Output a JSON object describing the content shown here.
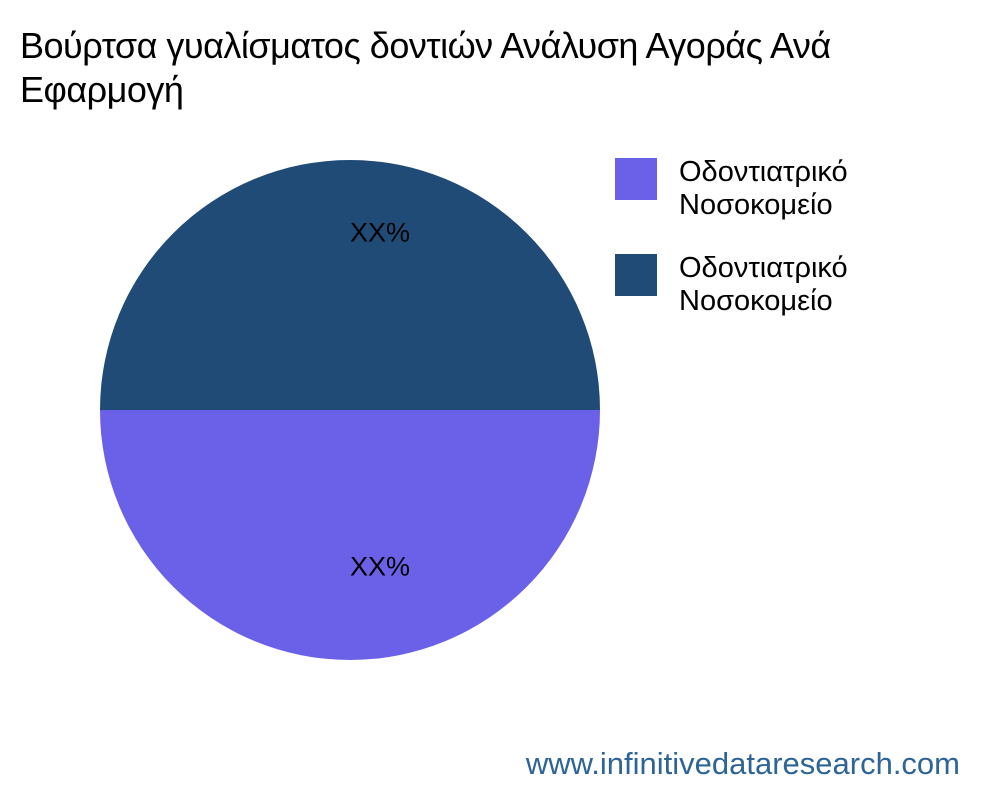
{
  "title": {
    "lines": [
      "Βούρτσα γυαλίσματος δοντιών Ανάλυση Αγοράς Ανά",
      "Εφαρμογή"
    ]
  },
  "chart_data": {
    "type": "pie",
    "title": "Βούρτσα γυαλίσματος δοντιών Ανάλυση Αγοράς Ανά Εφαρμογή",
    "slices": [
      {
        "label": "Οδοντιατρικό Νοσοκομείο",
        "value": 50,
        "display_value": "XX%",
        "color": "#6B61E8",
        "position": "bottom"
      },
      {
        "label": "Οδοντιατρικό Νοσοκομείο",
        "value": 50,
        "display_value": "XX%",
        "color": "#1F4B76",
        "position": "top"
      }
    ],
    "start_angle_deg": 0,
    "direction": "clockwise",
    "legend_position": "right",
    "labels_format": "percent_placeholder",
    "label_color": "#000000",
    "background": "#ffffff"
  },
  "footer": {
    "website": "www.infinitivedataresearch.com",
    "color": "#2E6496"
  }
}
